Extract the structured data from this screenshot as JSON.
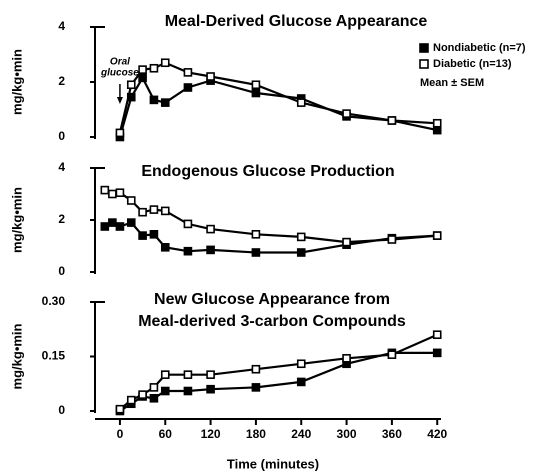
{
  "chart_data": [
    {
      "type": "line",
      "title": "Meal-Derived Glucose Appearance",
      "ylabel": "mg/kg•min",
      "x": [
        0,
        15,
        30,
        45,
        60,
        90,
        120,
        180,
        240,
        300,
        360,
        420
      ],
      "series": [
        {
          "name": "Nondiabetic (n=7)",
          "color": "#000000",
          "marker": "filled-square",
          "values": [
            0,
            1.45,
            2.15,
            1.35,
            1.25,
            1.8,
            2.05,
            1.6,
            1.4,
            0.75,
            0.6,
            0.25
          ]
        },
        {
          "name": "Diabetic (n=13)",
          "color": "#000000",
          "marker": "open-square",
          "values": [
            0.15,
            1.9,
            2.45,
            2.5,
            2.7,
            2.35,
            2.2,
            1.9,
            1.25,
            0.85,
            0.6,
            0.5
          ]
        }
      ],
      "legend_note": "Mean ± SEM",
      "legend": "upper right",
      "annotations": [
        {
          "lines": [
            "Oral",
            "glucose"
          ],
          "x": 0
        }
      ],
      "xlim": [
        -33,
        425
      ],
      "ylim": [
        0,
        4
      ],
      "yticks": [
        0,
        2,
        4
      ]
    },
    {
      "type": "line",
      "title": "Endogenous Glucose Production",
      "ylabel": "mg/kg•min",
      "x": [
        -20,
        -10,
        0,
        15,
        30,
        45,
        60,
        90,
        120,
        180,
        240,
        300,
        360,
        420
      ],
      "series": [
        {
          "color": "#000000",
          "marker": "filled-square",
          "values": [
            1.75,
            1.9,
            1.75,
            1.9,
            1.4,
            1.45,
            0.95,
            0.8,
            0.85,
            0.75,
            0.75,
            1.05,
            1.3,
            1.4
          ]
        },
        {
          "color": "#000000",
          "marker": "open-square",
          "values": [
            3.15,
            3.0,
            3.05,
            2.75,
            2.3,
            2.4,
            2.35,
            1.85,
            1.65,
            1.45,
            1.35,
            1.15,
            1.25,
            1.4
          ]
        }
      ],
      "xlim": [
        -33,
        425
      ],
      "ylim": [
        0,
        4
      ],
      "yticks": [
        0,
        2,
        4
      ]
    },
    {
      "type": "line",
      "title": [
        "New Glucose Appearance from",
        "Meal-derived 3-carbon Compounds"
      ],
      "ylabel": "mg/kg•min",
      "xlabel": "Time (minutes)",
      "x": [
        0,
        15,
        30,
        45,
        60,
        90,
        120,
        180,
        240,
        300,
        360,
        420
      ],
      "series": [
        {
          "color": "#000000",
          "marker": "filled-square",
          "values": [
            0,
            0.02,
            0.04,
            0.035,
            0.055,
            0.055,
            0.06,
            0.065,
            0.08,
            0.13,
            0.16,
            0.16
          ]
        },
        {
          "color": "#000000",
          "marker": "open-square",
          "values": [
            0.005,
            0.03,
            0.045,
            0.065,
            0.1,
            0.1,
            0.1,
            0.115,
            0.13,
            0.145,
            0.155,
            0.21
          ]
        }
      ],
      "xlim": [
        -33,
        425
      ],
      "xticks": [
        0,
        60,
        120,
        180,
        240,
        300,
        360,
        420
      ],
      "ylim": [
        0,
        0.3
      ],
      "yticks": [
        0,
        0.15,
        {
          "value": 0.3,
          "label": "0.30"
        }
      ]
    }
  ]
}
